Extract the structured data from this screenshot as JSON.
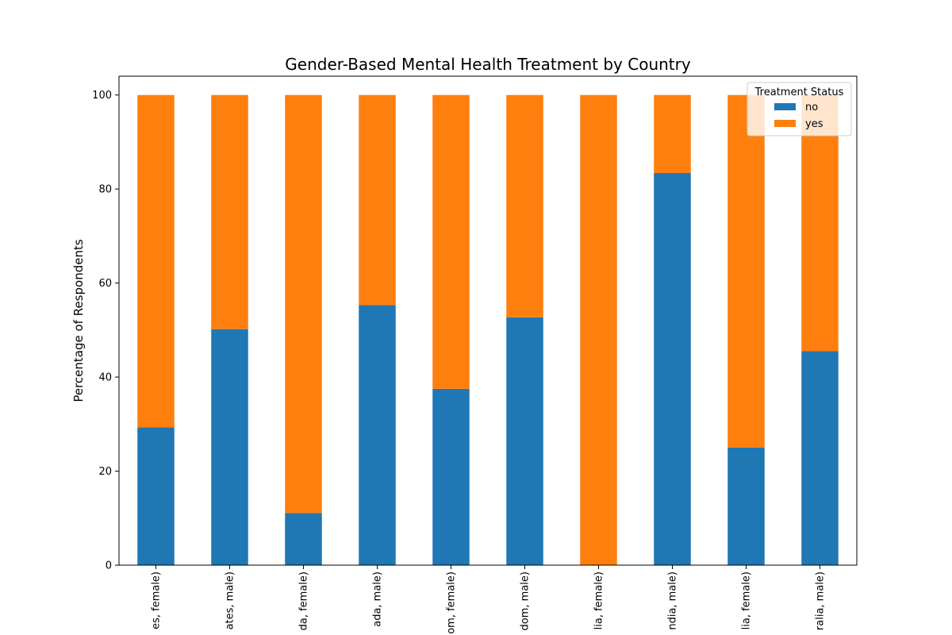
{
  "chart_data": {
    "type": "bar",
    "stacked": true,
    "title": "Gender-Based Mental Health Treatment by Country",
    "xlabel": "",
    "ylabel": "Percentage of Respondents",
    "ylim": [
      0,
      104
    ],
    "yticks": [
      0,
      20,
      40,
      60,
      80,
      100
    ],
    "categories": [
      "es, female)",
      "ates, male)",
      "da, female)",
      "ada, male)",
      "om, female)",
      "dom, male)",
      "lia, female)",
      "ndia, male)",
      "lia, female)",
      "ralia, male)"
    ],
    "series": [
      {
        "name": "no",
        "color": "#1f77b4",
        "values": [
          29.3,
          50.2,
          11.1,
          55.3,
          37.5,
          52.7,
          0.0,
          83.4,
          25.0,
          45.5
        ]
      },
      {
        "name": "yes",
        "color": "#ff7f0e",
        "values": [
          70.7,
          49.8,
          88.9,
          44.7,
          62.5,
          47.3,
          100.0,
          16.6,
          75.0,
          54.5
        ]
      }
    ],
    "legend": {
      "title": "Treatment Status",
      "position": "upper right"
    },
    "grid": false
  }
}
